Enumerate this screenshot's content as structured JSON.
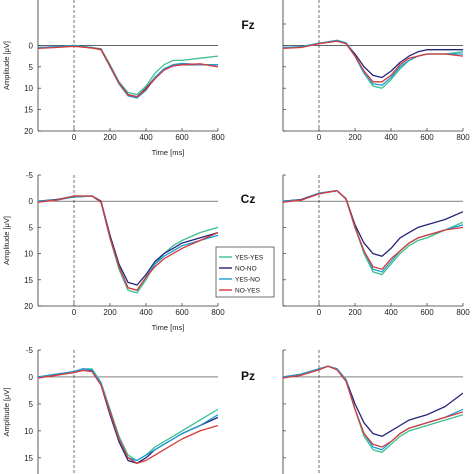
{
  "figure": {
    "ylabel": "Amplitude [μV]",
    "xlabel": "Time [ms]",
    "electrodes": [
      "Fz",
      "Cz",
      "Pz"
    ]
  },
  "legend": {
    "items": [
      {
        "label": "YES-YES",
        "color": "#3dbf8f"
      },
      {
        "label": "NO-NO",
        "color": "#23237a"
      },
      {
        "label": "YES-NO",
        "color": "#1f9fd6"
      },
      {
        "label": "NO-YES",
        "color": "#d63a3a"
      }
    ]
  },
  "chart_data": [
    {
      "type": "line",
      "electrode": "Fz",
      "column": "left",
      "xlabel": "Time [ms]",
      "ylabel": "Amplitude [μV]",
      "xlim": [
        -200,
        800
      ],
      "ylim": [
        20,
        -5
      ],
      "y_inverted": true,
      "xticks": [
        0,
        200,
        400,
        600,
        800
      ],
      "yticks": [
        0,
        5,
        10,
        15,
        20
      ],
      "x": [
        -200,
        -100,
        0,
        100,
        150,
        200,
        250,
        300,
        350,
        400,
        450,
        500,
        550,
        600,
        700,
        800
      ],
      "series": [
        {
          "name": "YES-YES",
          "color": "#3dbf8f",
          "values": [
            0.5,
            0.3,
            0,
            0.5,
            0.8,
            4.5,
            8.5,
            11,
            11.5,
            9.5,
            6.5,
            4.5,
            3.5,
            3.5,
            3,
            2.5
          ]
        },
        {
          "name": "NO-NO",
          "color": "#23237a",
          "values": [
            0.6,
            0.4,
            0.1,
            0.6,
            0.9,
            4.8,
            8.8,
            11.5,
            12,
            10,
            7.5,
            5.5,
            4.8,
            4.5,
            4.5,
            4.5
          ]
        },
        {
          "name": "YES-NO",
          "color": "#1f9fd6",
          "values": [
            0.5,
            0.3,
            0,
            0.5,
            1,
            5,
            9,
            11.8,
            12.3,
            10.5,
            7.5,
            5.5,
            4.5,
            4.2,
            4.5,
            4.5
          ]
        },
        {
          "name": "NO-YES",
          "color": "#d63a3a",
          "values": [
            0.7,
            0.5,
            0.2,
            0.6,
            1,
            4.8,
            8.8,
            11.6,
            12,
            10.2,
            7.8,
            5.8,
            4.8,
            4.5,
            4.3,
            5
          ]
        }
      ]
    },
    {
      "type": "line",
      "electrode": "Fz",
      "column": "right",
      "xlim": [
        -200,
        800
      ],
      "ylim": [
        20,
        -5
      ],
      "y_inverted": true,
      "xticks": [
        0,
        200,
        400,
        600,
        800
      ],
      "xticklabels": [
        "0",
        "200",
        "400",
        "600",
        "800"
      ],
      "x": [
        -200,
        -100,
        0,
        100,
        150,
        200,
        250,
        300,
        350,
        400,
        450,
        500,
        550,
        600,
        700,
        800
      ],
      "series": [
        {
          "name": "YES-YES",
          "color": "#3dbf8f",
          "values": [
            0.5,
            0.3,
            -0.5,
            -1,
            -0.5,
            2.5,
            6.5,
            9.5,
            10,
            8,
            5.5,
            3.5,
            2.5,
            2,
            2,
            1.5
          ]
        },
        {
          "name": "NO-NO",
          "color": "#23237a",
          "values": [
            0.6,
            0.4,
            -0.5,
            -1,
            -0.5,
            2,
            5,
            7,
            7.5,
            6,
            4,
            2.5,
            1.5,
            1,
            1,
            1
          ]
        },
        {
          "name": "YES-NO",
          "color": "#1f9fd6",
          "values": [
            0.5,
            0.3,
            -0.5,
            -1.2,
            -0.6,
            2.5,
            6.5,
            9,
            9.3,
            7.5,
            5,
            3.5,
            2.5,
            2,
            2,
            2
          ]
        },
        {
          "name": "NO-YES",
          "color": "#d63a3a",
          "values": [
            0.7,
            0.5,
            -0.4,
            -1,
            -0.4,
            2.5,
            6,
            8.5,
            8.5,
            7,
            4.5,
            3,
            2.5,
            2,
            2,
            2.5
          ]
        }
      ]
    },
    {
      "type": "line",
      "electrode": "Cz",
      "column": "left",
      "xlabel": "Time [ms]",
      "ylabel": "Amplitude [μV]",
      "xlim": [
        -200,
        800
      ],
      "ylim": [
        20,
        -5
      ],
      "y_inverted": true,
      "xticks": [
        0,
        200,
        400,
        600,
        800
      ],
      "yticks": [
        -5,
        0,
        5,
        10,
        15,
        20
      ],
      "x": [
        -200,
        -100,
        0,
        100,
        150,
        200,
        250,
        300,
        350,
        400,
        450,
        500,
        550,
        600,
        700,
        800
      ],
      "series": [
        {
          "name": "YES-YES",
          "color": "#3dbf8f",
          "values": [
            0,
            -0.3,
            -1,
            -1,
            0,
            7,
            13,
            17,
            17.5,
            15,
            12,
            10,
            8.5,
            7.5,
            6,
            5
          ]
        },
        {
          "name": "NO-NO",
          "color": "#23237a",
          "values": [
            0,
            -0.3,
            -0.8,
            -1,
            0,
            6.5,
            12,
            15.5,
            16,
            14,
            11.5,
            10,
            9,
            8,
            7,
            6
          ]
        },
        {
          "name": "YES-NO",
          "color": "#1f9fd6",
          "values": [
            0,
            -0.2,
            -0.8,
            -1,
            0.2,
            7,
            12.5,
            16.5,
            17,
            14.5,
            12,
            10.5,
            9.5,
            8.5,
            7.5,
            6.5
          ]
        },
        {
          "name": "NO-YES",
          "color": "#d63a3a",
          "values": [
            0.2,
            -0.2,
            -1,
            -1,
            0.2,
            7,
            12.5,
            16.5,
            17,
            14.5,
            12.5,
            11,
            10,
            9,
            7.5,
            6
          ]
        }
      ]
    },
    {
      "type": "line",
      "electrode": "Cz",
      "column": "right",
      "xlim": [
        -200,
        800
      ],
      "ylim": [
        20,
        -5
      ],
      "y_inverted": true,
      "xticks": [
        0,
        200,
        400,
        600,
        800
      ],
      "xticklabels": [
        "0",
        "200",
        "400",
        "600",
        "800"
      ],
      "x": [
        -200,
        -100,
        0,
        100,
        150,
        200,
        250,
        300,
        350,
        400,
        450,
        500,
        550,
        600,
        700,
        800
      ],
      "series": [
        {
          "name": "YES-YES",
          "color": "#3dbf8f",
          "values": [
            0,
            -0.3,
            -1.5,
            -2,
            -0.5,
            5,
            10,
            13.5,
            14,
            12,
            10,
            8.5,
            7.5,
            7,
            5.5,
            4
          ]
        },
        {
          "name": "NO-NO",
          "color": "#23237a",
          "values": [
            0,
            -0.3,
            -1.5,
            -2,
            -0.5,
            4.5,
            8,
            10,
            10.5,
            9,
            7,
            6,
            5,
            4.5,
            3.5,
            2
          ]
        },
        {
          "name": "YES-NO",
          "color": "#1f9fd6",
          "values": [
            0,
            -0.2,
            -1.5,
            -2,
            -0.5,
            5,
            9.5,
            13,
            13.5,
            11.5,
            9.5,
            8,
            7,
            6.5,
            5.5,
            4.5
          ]
        },
        {
          "name": "NO-YES",
          "color": "#d63a3a",
          "values": [
            0.2,
            -0.2,
            -1.4,
            -2,
            -0.4,
            5,
            9.5,
            12.5,
            13,
            11,
            9.5,
            8,
            7,
            6.5,
            5.5,
            5
          ]
        }
      ]
    },
    {
      "type": "line",
      "electrode": "Pz",
      "column": "left",
      "ylabel": "Amplitude [μV]",
      "xlim": [
        -200,
        800
      ],
      "ylim": [
        18,
        -5
      ],
      "y_inverted": true,
      "yticks": [
        -5,
        0,
        5,
        10,
        15
      ],
      "x": [
        -200,
        -100,
        0,
        50,
        100,
        150,
        200,
        250,
        300,
        350,
        400,
        450,
        500,
        550,
        600,
        700,
        800
      ],
      "series": [
        {
          "name": "YES-YES",
          "color": "#3dbf8f",
          "values": [
            0,
            -0.5,
            -1,
            -1.5,
            -1.5,
            1,
            6,
            11,
            14.5,
            15.5,
            14.5,
            13,
            12,
            11,
            10,
            8,
            6
          ]
        },
        {
          "name": "NO-NO",
          "color": "#23237a",
          "values": [
            0,
            -0.5,
            -1,
            -1.5,
            -1.2,
            1.5,
            7,
            12,
            15.5,
            16,
            15,
            13.5,
            12.5,
            11.5,
            10.5,
            9,
            7.5
          ]
        },
        {
          "name": "YES-NO",
          "color": "#1f9fd6",
          "values": [
            0,
            -0.5,
            -1,
            -1.5,
            -1.3,
            1.2,
            6.5,
            11.5,
            15,
            15.5,
            14.5,
            13.5,
            12.5,
            11.5,
            10.5,
            9,
            7
          ]
        },
        {
          "name": "NO-YES",
          "color": "#d63a3a",
          "values": [
            0.2,
            -0.3,
            -0.8,
            -1.2,
            -1,
            1.5,
            6.5,
            11.5,
            15,
            16,
            15.5,
            14.5,
            13.5,
            12.5,
            11.5,
            10,
            9
          ]
        }
      ]
    },
    {
      "type": "line",
      "electrode": "Pz",
      "column": "right",
      "xlim": [
        -200,
        800
      ],
      "ylim": [
        18,
        -5
      ],
      "y_inverted": true,
      "x": [
        -200,
        -100,
        0,
        50,
        100,
        150,
        200,
        250,
        300,
        350,
        400,
        450,
        500,
        550,
        600,
        700,
        800
      ],
      "series": [
        {
          "name": "YES-YES",
          "color": "#3dbf8f",
          "values": [
            0,
            -0.5,
            -1.5,
            -2,
            -1.5,
            0.5,
            6,
            11,
            13.5,
            14,
            12.5,
            11,
            10,
            9.5,
            9,
            8,
            7
          ]
        },
        {
          "name": "NO-NO",
          "color": "#23237a",
          "values": [
            0,
            -0.5,
            -1.5,
            -2,
            -1.5,
            0.5,
            5,
            8.5,
            10.5,
            11,
            10,
            9,
            8,
            7.5,
            7,
            5.5,
            3
          ]
        },
        {
          "name": "YES-NO",
          "color": "#1f9fd6",
          "values": [
            0,
            -0.5,
            -1.5,
            -2,
            -1.5,
            0.5,
            6,
            10.5,
            13,
            13.5,
            12,
            10.5,
            9.5,
            9,
            8.5,
            7.5,
            6
          ]
        },
        {
          "name": "NO-YES",
          "color": "#d63a3a",
          "values": [
            0.2,
            -0.3,
            -1.3,
            -2,
            -1.3,
            0.8,
            6,
            10.5,
            12.5,
            13,
            12,
            10.5,
            9.5,
            9,
            8.5,
            7.5,
            6.5
          ]
        }
      ]
    }
  ]
}
